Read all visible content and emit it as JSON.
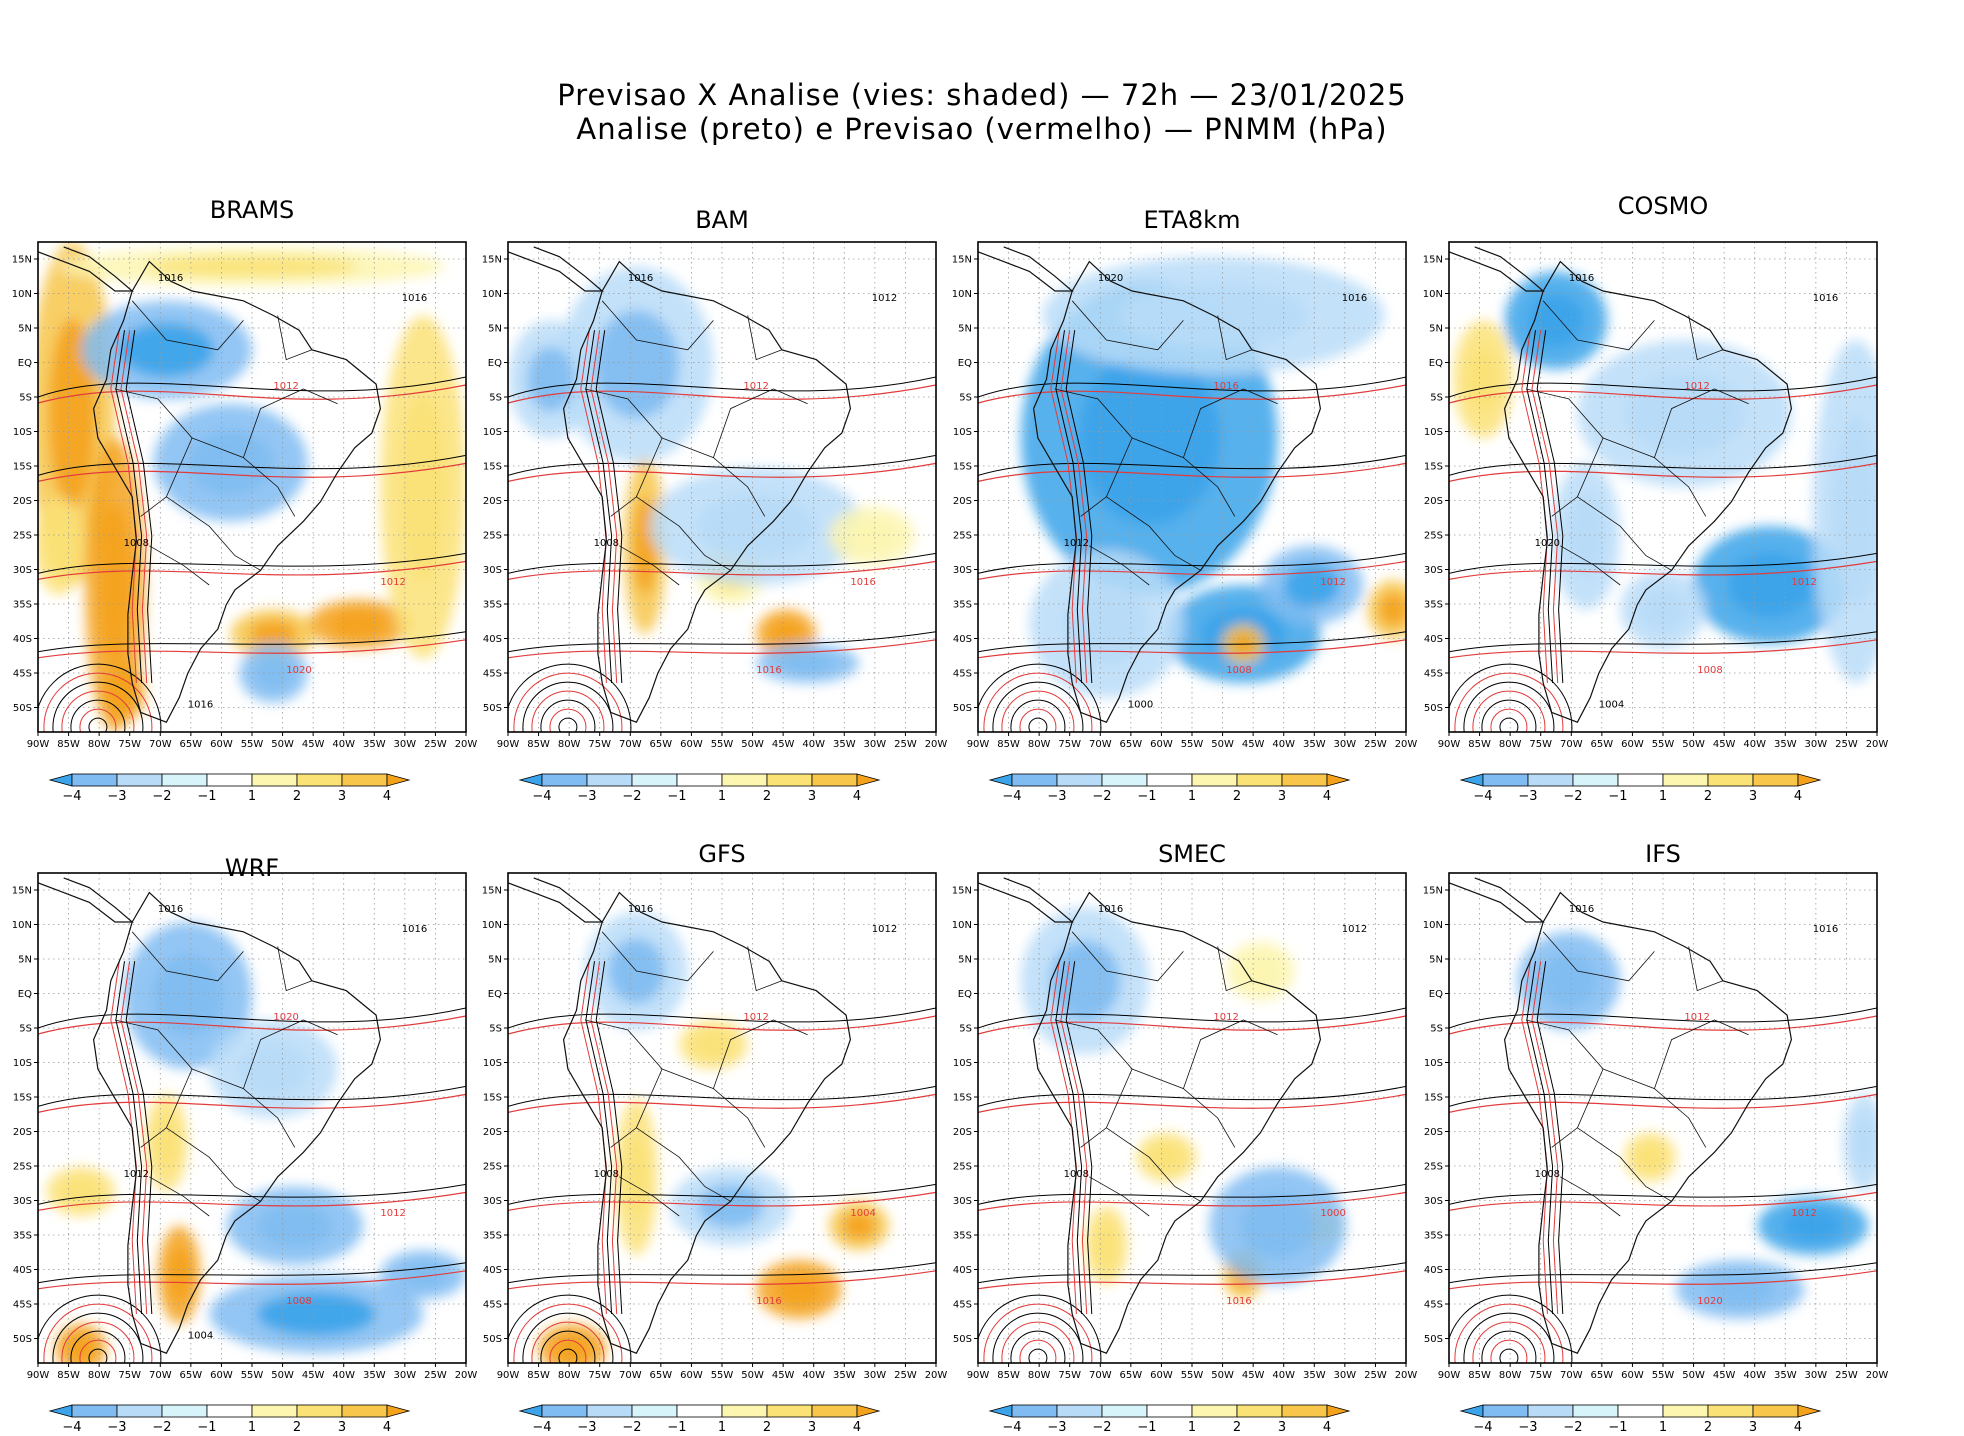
{
  "header": {
    "line1": "Previsao X Analise (vies: shaded) — 72h — 23/01/2025",
    "line2": "Analise (preto) e Previsao (vermelho) — PNMM (hPa)"
  },
  "colors": {
    "analysis_contour": "#000000",
    "forecast_contour": "#e23b3b",
    "coast": "#111111",
    "grid": "#9a9a9a",
    "bias_scale": [
      "#3ba3ea",
      "#80bcf2",
      "#b8dcf8",
      "#d8f4fb",
      "#ffffff",
      "#fdf6b0",
      "#fbe277",
      "#f7c64a",
      "#f4a21c"
    ]
  },
  "map": {
    "lon_ticks": [
      "90W",
      "85W",
      "80W",
      "75W",
      "70W",
      "65W",
      "60W",
      "55W",
      "50W",
      "45W",
      "40W",
      "35W",
      "30W",
      "25W",
      "20W"
    ],
    "lat_ticks": [
      "15N",
      "10N",
      "5N",
      "EQ",
      "5S",
      "10S",
      "15S",
      "20S",
      "25S",
      "30S",
      "35S",
      "40S",
      "45S",
      "50S"
    ]
  },
  "colorbar": {
    "labels": [
      "−4",
      "−3",
      "−2",
      "−1",
      "1",
      "2",
      "3",
      "4"
    ]
  },
  "panels": [
    {
      "name": "BRAMS",
      "iso_labels": [
        "1016",
        "1012",
        "1008",
        "1020",
        "1016",
        "1012",
        "1016"
      ],
      "bias": [
        [
          0.08,
          0.35,
          0.1,
          0.35,
          0.75
        ],
        [
          0.18,
          0.7,
          0.07,
          0.3,
          0.8
        ],
        [
          0.3,
          0.22,
          0.2,
          0.1,
          -0.7
        ],
        [
          0.75,
          0.78,
          0.12,
          0.05,
          0.85
        ],
        [
          0.55,
          0.8,
          0.1,
          0.05,
          0.7
        ],
        [
          0.9,
          0.5,
          0.1,
          0.35,
          0.5
        ],
        [
          0.45,
          0.45,
          0.18,
          0.12,
          -0.5
        ],
        [
          0.55,
          0.88,
          0.08,
          0.06,
          -0.5
        ],
        [
          0.5,
          0.05,
          0.45,
          0.04,
          0.45
        ],
        [
          0.2,
          0.92,
          0.05,
          0.06,
          0.8
        ],
        [
          0.05,
          0.62,
          0.06,
          0.1,
          0.6
        ]
      ]
    },
    {
      "name": "BAM",
      "iso_labels": [
        "1016",
        "1012",
        "1008",
        "1016",
        "1012",
        "1016"
      ],
      "bias": [
        [
          0.32,
          0.62,
          0.05,
          0.18,
          0.7
        ],
        [
          0.65,
          0.8,
          0.07,
          0.05,
          0.85
        ],
        [
          0.52,
          0.68,
          0.08,
          0.06,
          0.45
        ],
        [
          0.7,
          0.86,
          0.12,
          0.04,
          -0.6
        ],
        [
          0.58,
          0.58,
          0.25,
          0.12,
          -0.35
        ],
        [
          0.3,
          0.25,
          0.18,
          0.2,
          -0.45
        ],
        [
          0.85,
          0.6,
          0.1,
          0.06,
          0.4
        ],
        [
          0.1,
          0.28,
          0.1,
          0.12,
          -0.45
        ]
      ]
    },
    {
      "name": "ETA8km",
      "iso_labels": [
        "1020",
        "1016",
        "1012",
        "1008",
        "1016",
        "1012",
        "1000"
      ],
      "bias": [
        [
          0.4,
          0.4,
          0.3,
          0.32,
          -0.8
        ],
        [
          0.62,
          0.8,
          0.18,
          0.1,
          -0.75
        ],
        [
          0.78,
          0.7,
          0.12,
          0.08,
          -0.7
        ],
        [
          0.97,
          0.75,
          0.06,
          0.06,
          0.75
        ],
        [
          0.62,
          0.82,
          0.05,
          0.04,
          0.75
        ],
        [
          0.3,
          0.78,
          0.18,
          0.15,
          -0.4
        ],
        [
          0.55,
          0.15,
          0.4,
          0.12,
          -0.3
        ]
      ]
    },
    {
      "name": "COSMO",
      "iso_labels": [
        "1016",
        "1012",
        "1020",
        "1008",
        "1016",
        "1012",
        "1004"
      ],
      "bias": [
        [
          0.25,
          0.16,
          0.12,
          0.1,
          -0.75
        ],
        [
          0.55,
          0.35,
          0.25,
          0.15,
          -0.35
        ],
        [
          0.75,
          0.7,
          0.18,
          0.12,
          -0.8
        ],
        [
          0.5,
          0.75,
          0.1,
          0.08,
          -0.4
        ],
        [
          0.08,
          0.28,
          0.07,
          0.12,
          0.6
        ],
        [
          0.95,
          0.55,
          0.1,
          0.35,
          -0.35
        ],
        [
          0.32,
          0.6,
          0.08,
          0.15,
          -0.3
        ]
      ]
    },
    {
      "name": "WRF",
      "iso_labels": [
        "1016",
        "1020",
        "1012",
        "1008",
        "1016",
        "1012",
        "1004"
      ],
      "bias": [
        [
          0.33,
          0.82,
          0.05,
          0.1,
          0.85
        ],
        [
          0.65,
          0.9,
          0.25,
          0.08,
          -0.7
        ],
        [
          0.6,
          0.72,
          0.16,
          0.08,
          -0.6
        ],
        [
          0.35,
          0.25,
          0.15,
          0.15,
          -0.5
        ],
        [
          0.1,
          0.65,
          0.08,
          0.05,
          0.6
        ],
        [
          0.3,
          0.55,
          0.05,
          0.1,
          0.6
        ],
        [
          0.9,
          0.82,
          0.1,
          0.05,
          -0.5
        ],
        [
          0.1,
          0.97,
          0.06,
          0.05,
          0.85
        ],
        [
          0.55,
          0.4,
          0.15,
          0.1,
          -0.35
        ]
      ]
    },
    {
      "name": "GFS",
      "iso_labels": [
        "1016",
        "1012",
        "1008",
        "1016",
        "1012",
        "1004"
      ],
      "bias": [
        [
          0.68,
          0.85,
          0.1,
          0.06,
          0.8
        ],
        [
          0.82,
          0.72,
          0.07,
          0.05,
          0.7
        ],
        [
          0.3,
          0.62,
          0.05,
          0.16,
          0.6
        ],
        [
          0.52,
          0.68,
          0.14,
          0.08,
          -0.45
        ],
        [
          0.3,
          0.2,
          0.12,
          0.12,
          -0.45
        ],
        [
          0.48,
          0.35,
          0.08,
          0.05,
          0.5
        ],
        [
          0.15,
          0.97,
          0.08,
          0.05,
          0.85
        ]
      ]
    },
    {
      "name": "SMEC",
      "iso_labels": [
        "1016",
        "1012",
        "1008",
        "1016",
        "1012",
        "1000"
      ],
      "bias": [
        [
          0.62,
          0.82,
          0.05,
          0.05,
          0.7
        ],
        [
          0.78,
          0.72,
          0.07,
          0.04,
          0.6
        ],
        [
          0.66,
          0.2,
          0.08,
          0.06,
          0.4
        ],
        [
          0.44,
          0.58,
          0.07,
          0.05,
          0.55
        ],
        [
          0.3,
          0.76,
          0.05,
          0.08,
          0.55
        ],
        [
          0.7,
          0.72,
          0.16,
          0.12,
          -0.55
        ],
        [
          0.25,
          0.22,
          0.15,
          0.15,
          -0.45
        ]
      ]
    },
    {
      "name": "IFS",
      "iso_labels": [
        "1016",
        "1012",
        "1008",
        "1020",
        "1016",
        "1012"
      ],
      "bias": [
        [
          0.85,
          0.72,
          0.13,
          0.06,
          -0.75
        ],
        [
          0.68,
          0.85,
          0.15,
          0.06,
          -0.55
        ],
        [
          0.47,
          0.58,
          0.06,
          0.05,
          0.55
        ],
        [
          0.28,
          0.22,
          0.12,
          0.1,
          -0.5
        ],
        [
          0.97,
          0.55,
          0.05,
          0.1,
          -0.3
        ]
      ]
    }
  ]
}
